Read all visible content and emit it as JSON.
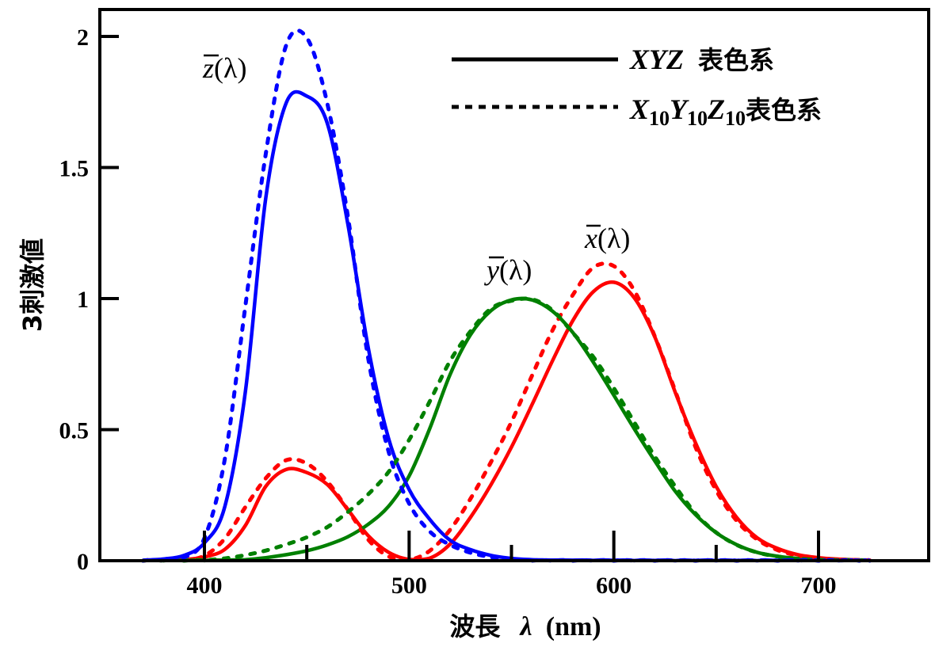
{
  "chart_data": {
    "type": "line",
    "xlabel_cjk": "波長",
    "xlabel_symbol": "λ",
    "xlabel_unit": "(nm)",
    "ylabel": "3刺激値",
    "xlim": [
      348.5,
      754
    ],
    "ylim": [
      0,
      2.1
    ],
    "x_ticks": [
      400,
      500,
      600,
      700
    ],
    "x_minor_ticks": [
      450,
      550,
      650
    ],
    "y_ticks": [
      0,
      0.5,
      1,
      1.5,
      2
    ],
    "y_tick_labels": [
      "0",
      "0.5",
      "1",
      "1.5",
      "2"
    ],
    "x_tick_labels": [
      "400",
      "500",
      "600",
      "700"
    ],
    "legend": {
      "position": "top-right",
      "entries": [
        {
          "style": "solid",
          "label_italic": "XYZ",
          "label_cjk": "表色系"
        },
        {
          "style": "dotted",
          "label_parts": [
            "X",
            "10",
            "Y",
            "10",
            "Z",
            "10"
          ],
          "label_cjk": "表色系"
        }
      ]
    },
    "curve_labels": {
      "z": {
        "letter": "z",
        "arg": "(λ)"
      },
      "y": {
        "letter": "y",
        "arg": "(λ)"
      },
      "x": {
        "letter": "x",
        "arg": "(λ)"
      }
    },
    "colors": {
      "x": "#ff0000",
      "y": "#008000",
      "z": "#0000ff",
      "frame": "#000000"
    },
    "x": [
      370,
      380,
      390,
      400,
      410,
      420,
      430,
      440,
      450,
      460,
      470,
      480,
      490,
      500,
      510,
      520,
      530,
      540,
      550,
      560,
      570,
      580,
      590,
      600,
      610,
      620,
      630,
      640,
      650,
      660,
      670,
      680,
      690,
      700,
      710,
      720,
      725
    ],
    "series": [
      {
        "name": "xbar 2deg",
        "system": "XYZ",
        "style": "solid",
        "color": "x",
        "values": [
          0.0004,
          0.0014,
          0.0042,
          0.0143,
          0.0435,
          0.1344,
          0.2839,
          0.3483,
          0.3362,
          0.2908,
          0.1954,
          0.0956,
          0.032,
          0.0049,
          0.0093,
          0.0633,
          0.1655,
          0.2904,
          0.4334,
          0.5945,
          0.7621,
          0.9163,
          1.0263,
          1.0622,
          1.0026,
          0.8544,
          0.6424,
          0.4479,
          0.2835,
          0.1649,
          0.0874,
          0.0468,
          0.0227,
          0.0114,
          0.0058,
          0.0029,
          0.002
        ]
      },
      {
        "name": "ybar 2deg",
        "system": "XYZ",
        "style": "solid",
        "color": "y",
        "values": [
          0.0,
          0.0,
          0.0001,
          0.0004,
          0.0012,
          0.004,
          0.0116,
          0.023,
          0.038,
          0.06,
          0.091,
          0.139,
          0.208,
          0.323,
          0.503,
          0.71,
          0.862,
          0.954,
          0.995,
          0.995,
          0.952,
          0.87,
          0.757,
          0.631,
          0.503,
          0.381,
          0.265,
          0.175,
          0.107,
          0.061,
          0.032,
          0.017,
          0.0082,
          0.0041,
          0.0021,
          0.001,
          0.0007
        ]
      },
      {
        "name": "zbar 2deg",
        "system": "XYZ",
        "style": "solid",
        "color": "z",
        "values": [
          0.002,
          0.0065,
          0.0201,
          0.0679,
          0.2074,
          0.6456,
          1.3856,
          1.7471,
          1.7721,
          1.6692,
          1.2876,
          0.813,
          0.4652,
          0.272,
          0.1582,
          0.0782,
          0.0422,
          0.0203,
          0.0087,
          0.0039,
          0.0021,
          0.0017,
          0.0011,
          0.0008,
          0.0003,
          0.0002,
          0.0,
          0.0,
          0.0,
          0.0,
          0.0,
          0.0,
          0.0,
          0.0,
          0.0,
          0.0,
          0.0
        ]
      },
      {
        "name": "xbar 10deg",
        "system": "X10Y10Z10",
        "style": "dotted",
        "color": "x",
        "values": [
          0.0,
          0.0002,
          0.0026,
          0.0191,
          0.0847,
          0.2045,
          0.3147,
          0.3837,
          0.3707,
          0.3023,
          0.1956,
          0.0805,
          0.0162,
          0.0038,
          0.0375,
          0.1177,
          0.2365,
          0.3768,
          0.5298,
          0.7052,
          0.8787,
          1.0142,
          1.1185,
          1.124,
          1.0305,
          0.8563,
          0.6475,
          0.4316,
          0.2683,
          0.1526,
          0.0813,
          0.0409,
          0.0199,
          0.0096,
          0.0046,
          0.0022,
          0.0015
        ]
      },
      {
        "name": "ybar 10deg",
        "system": "X10Y10Z10",
        "style": "dotted",
        "color": "y",
        "values": [
          0.0,
          0.0,
          0.0003,
          0.002,
          0.0088,
          0.0214,
          0.0387,
          0.0621,
          0.0895,
          0.1282,
          0.1852,
          0.2536,
          0.3391,
          0.4608,
          0.6067,
          0.7618,
          0.8752,
          0.962,
          0.9918,
          0.9973,
          0.9555,
          0.8689,
          0.7774,
          0.6583,
          0.528,
          0.3981,
          0.2835,
          0.1798,
          0.1076,
          0.0603,
          0.0318,
          0.0159,
          0.0077,
          0.0037,
          0.0018,
          0.0008,
          0.0006
        ]
      },
      {
        "name": "zbar 10deg",
        "system": "X10Y10Z10",
        "style": "dotted",
        "color": "z",
        "values": [
          0.0,
          0.0007,
          0.0122,
          0.086,
          0.3894,
          0.9725,
          1.5535,
          1.9673,
          1.9948,
          1.7454,
          1.3176,
          0.7721,
          0.4153,
          0.2185,
          0.112,
          0.0607,
          0.0305,
          0.0137,
          0.004,
          0.0,
          0.0,
          0.0,
          0.0,
          0.0,
          0.0,
          0.0,
          0.0,
          0.0,
          0.0,
          0.0,
          0.0,
          0.0,
          0.0,
          0.0,
          0.0,
          0.0,
          0.0
        ]
      }
    ]
  }
}
